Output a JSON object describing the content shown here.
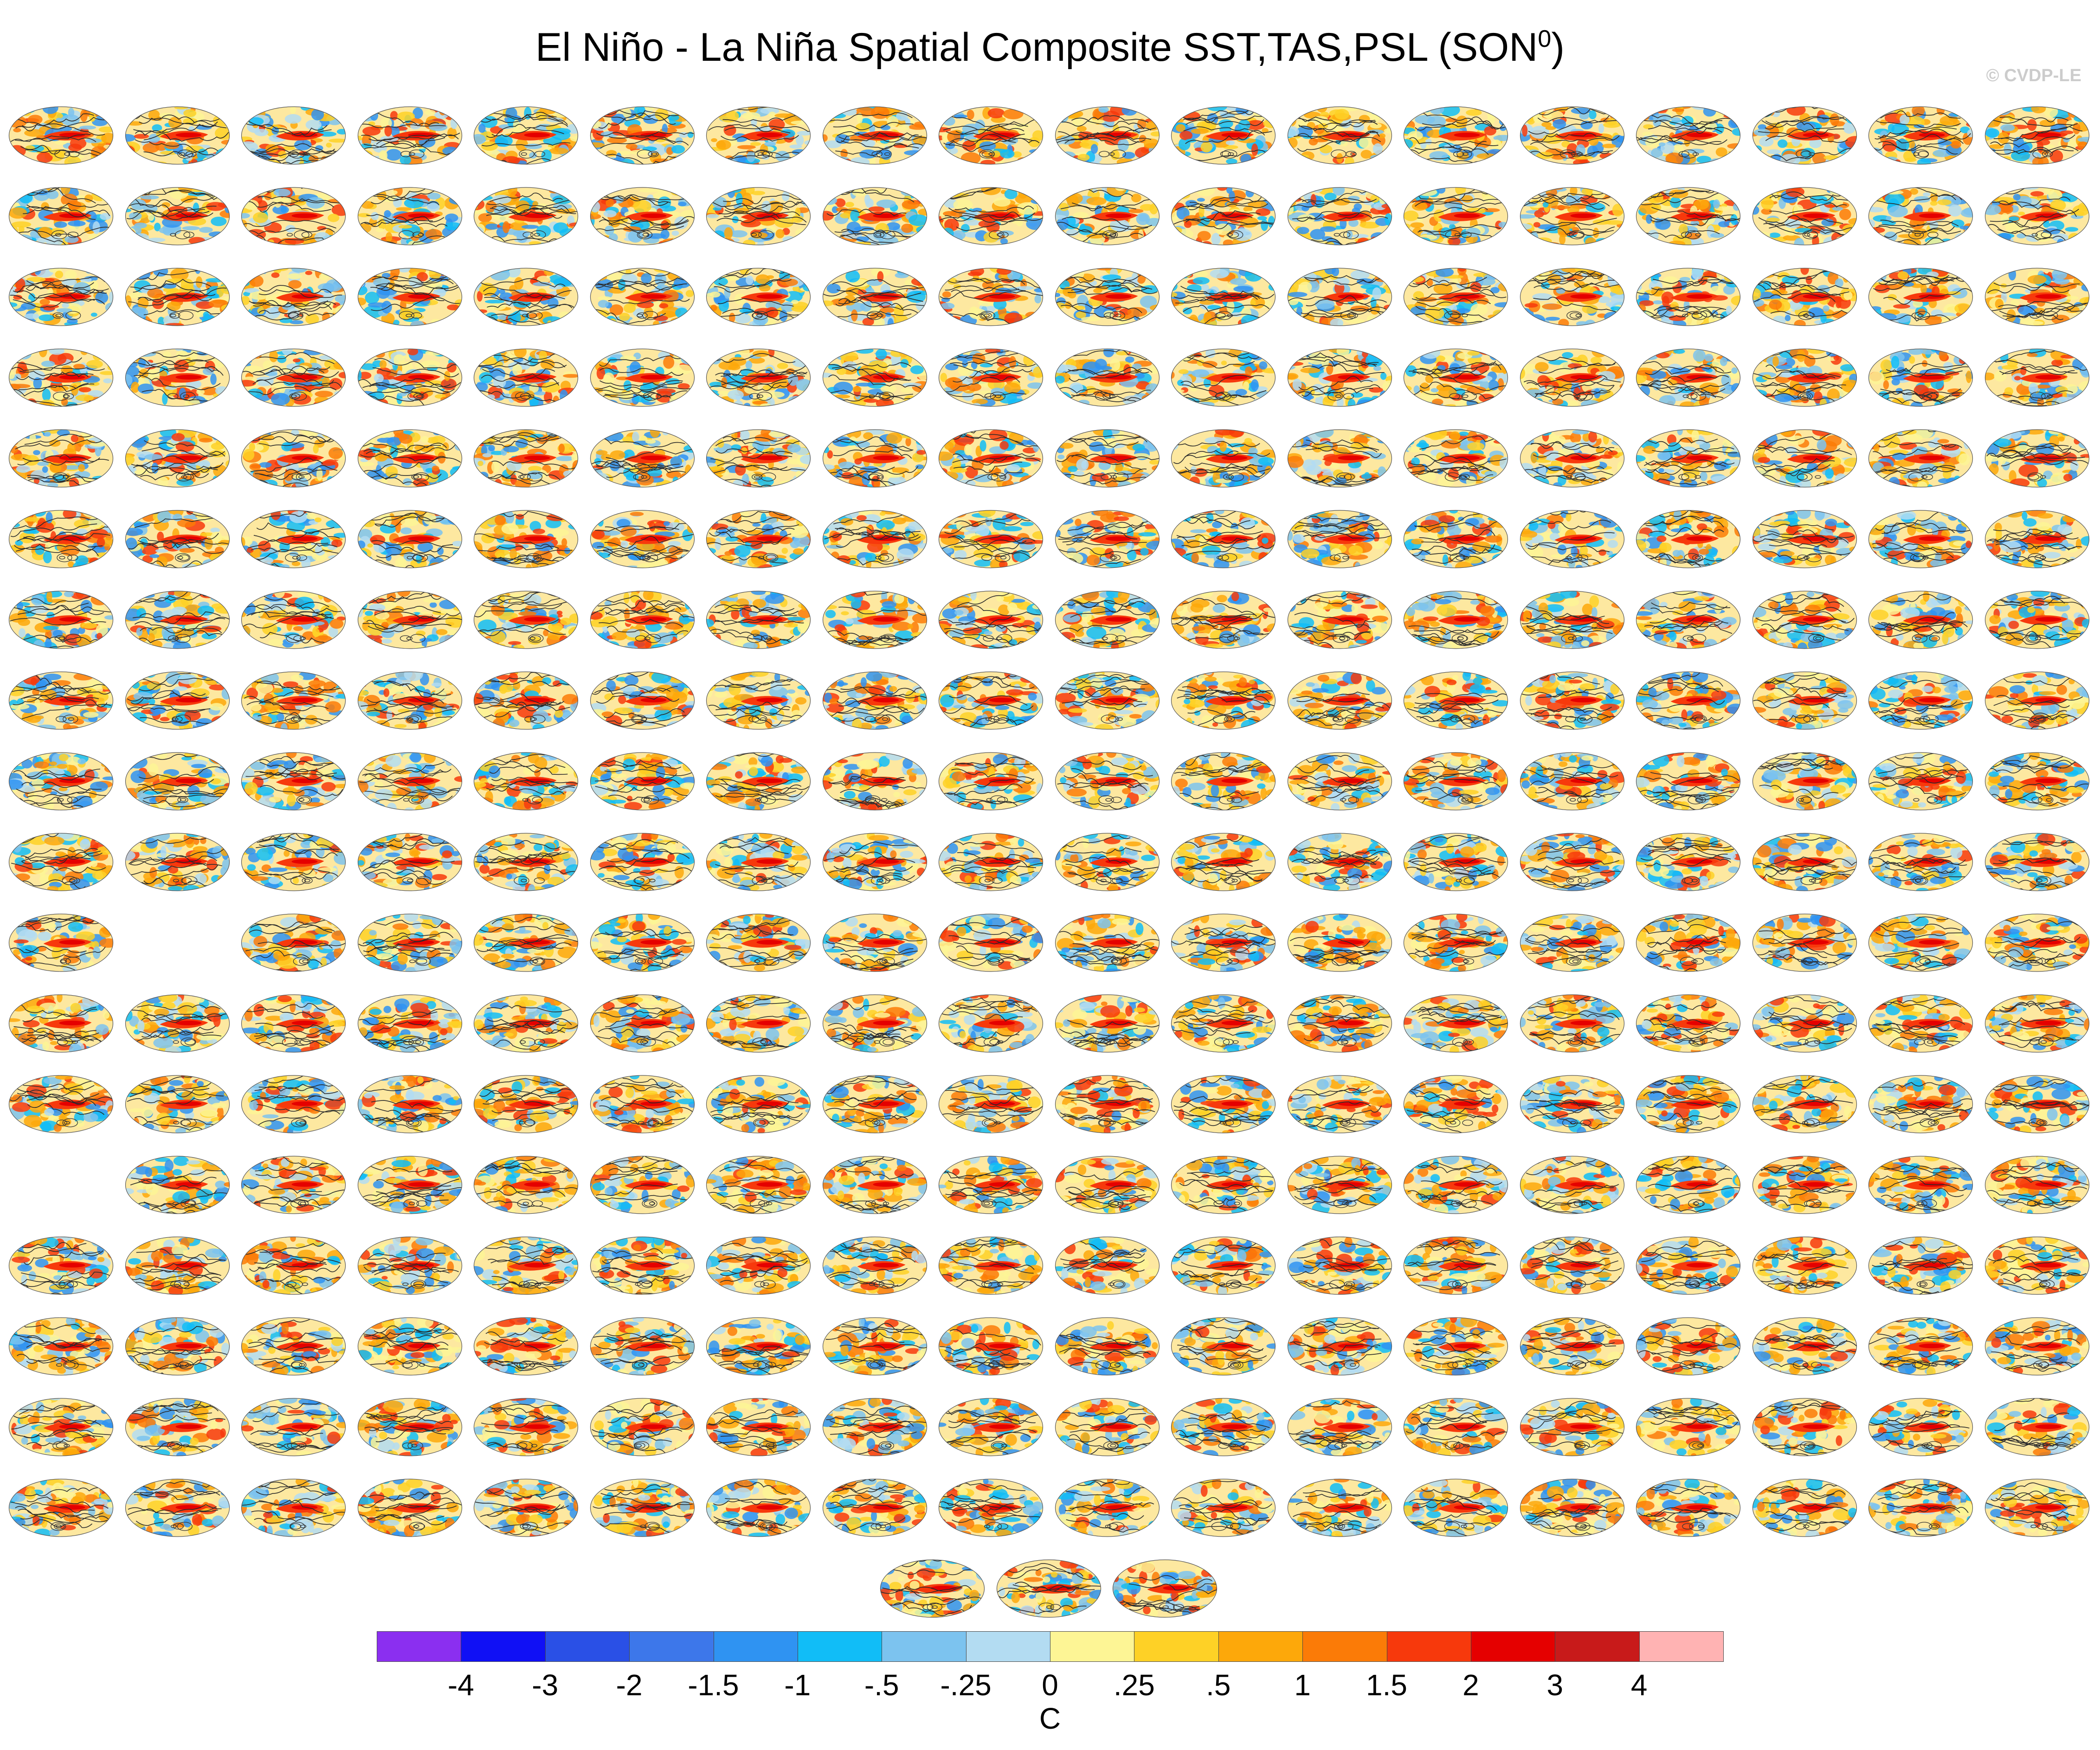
{
  "title_main": "El Niño - La Niña Spatial Composite SST,TAS,PSL (SON",
  "title_sup": "0",
  "title_close": ")",
  "credit": "© CVDP-LE",
  "chart_data": {
    "type": "heatmap",
    "description_fields": [
      "SST",
      "TAS",
      "PSL"
    ],
    "season": "SON",
    "panel_rows": [
      18,
      18,
      18,
      18,
      18,
      18,
      18,
      18,
      18,
      18,
      17,
      18,
      18,
      17,
      18,
      18,
      18,
      18,
      3
    ],
    "panel_row_skips": [
      [],
      [],
      [],
      [],
      [],
      [],
      [],
      [],
      [],
      [],
      [
        1
      ],
      [],
      [],
      [
        0
      ],
      [],
      [],
      [],
      [],
      []
    ],
    "colorbar": {
      "unit": "C",
      "tick_labels": [
        "-4",
        "-3",
        "-2",
        "-1.5",
        "-1",
        "-.5",
        "-.25",
        "0",
        ".25",
        ".5",
        "1",
        "1.5",
        "2",
        "3",
        "4"
      ],
      "levels": [
        -4,
        -3,
        -2,
        -1.5,
        -1,
        -0.5,
        -0.25,
        0,
        0.25,
        0.5,
        1,
        1.5,
        2,
        3,
        4
      ],
      "colors": [
        "#8b2ff0",
        "#1010f5",
        "#2a50e6",
        "#3d77ea",
        "#2f93f2",
        "#11bdf7",
        "#7cc3ef",
        "#b3dcf2",
        "#fdf595",
        "#fed126",
        "#fda80a",
        "#fb7b07",
        "#f7390c",
        "#e50000",
        "#c81a1a",
        "#ffb3b3"
      ]
    }
  }
}
